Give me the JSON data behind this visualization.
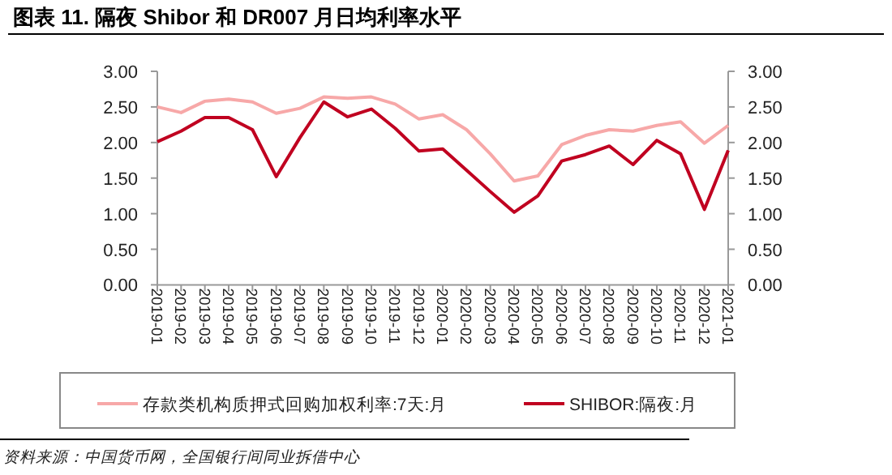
{
  "chart_data": {
    "type": "line",
    "title": "图表 11. 隔夜 Shibor 和 DR007 月日均利率水平",
    "categories": [
      "2019-01",
      "2019-02",
      "2019-03",
      "2019-04",
      "2019-05",
      "2019-06",
      "2019-07",
      "2019-08",
      "2019-09",
      "2019-10",
      "2019-11",
      "2019-12",
      "2020-01",
      "2020-02",
      "2020-03",
      "2020-04",
      "2020-05",
      "2020-06",
      "2020-07",
      "2020-08",
      "2020-09",
      "2020-10",
      "2020-11",
      "2020-12",
      "2021-01"
    ],
    "series": [
      {
        "name": "存款类机构质押式回购加权利率:7天:月",
        "color": "#f7a8a8",
        "values": [
          2.5,
          2.42,
          2.58,
          2.61,
          2.57,
          2.41,
          2.48,
          2.64,
          2.62,
          2.64,
          2.54,
          2.33,
          2.39,
          2.18,
          1.84,
          1.46,
          1.53,
          1.97,
          2.1,
          2.18,
          2.16,
          2.24,
          2.29,
          1.99,
          2.24
        ]
      },
      {
        "name": "SHIBOR:隔夜:月",
        "color": "#c00020",
        "values": [
          2.01,
          2.16,
          2.35,
          2.35,
          2.18,
          1.52,
          2.07,
          2.57,
          2.36,
          2.47,
          2.2,
          1.88,
          1.91,
          1.61,
          1.31,
          1.02,
          1.25,
          1.74,
          1.83,
          1.95,
          1.69,
          2.03,
          1.84,
          1.06,
          1.89
        ]
      }
    ],
    "ylim": [
      0,
      3
    ],
    "yticks": [
      {
        "value": 0,
        "label": "0.00"
      },
      {
        "value": 0.5,
        "label": "0.50"
      },
      {
        "value": 1,
        "label": "1.00"
      },
      {
        "value": 1.5,
        "label": "1.50"
      },
      {
        "value": 2,
        "label": "2.00"
      },
      {
        "value": 2.5,
        "label": "2.50"
      },
      {
        "value": 3,
        "label": "3.00"
      }
    ],
    "y2lim": [
      0,
      3
    ],
    "y2ticks": [
      {
        "value": 0,
        "label": "0.00"
      },
      {
        "value": 0.5,
        "label": "0.50"
      },
      {
        "value": 1,
        "label": "1.00"
      },
      {
        "value": 1.5,
        "label": "1.50"
      },
      {
        "value": 2,
        "label": "2.00"
      },
      {
        "value": 2.5,
        "label": "2.50"
      },
      {
        "value": 3,
        "label": "3.00"
      }
    ],
    "grid": false,
    "legend": "bottom",
    "marker": "none",
    "line_style": "solid",
    "annotations": [
      "资料来源：中国货币网，全国银行间同业拆借中心"
    ]
  }
}
